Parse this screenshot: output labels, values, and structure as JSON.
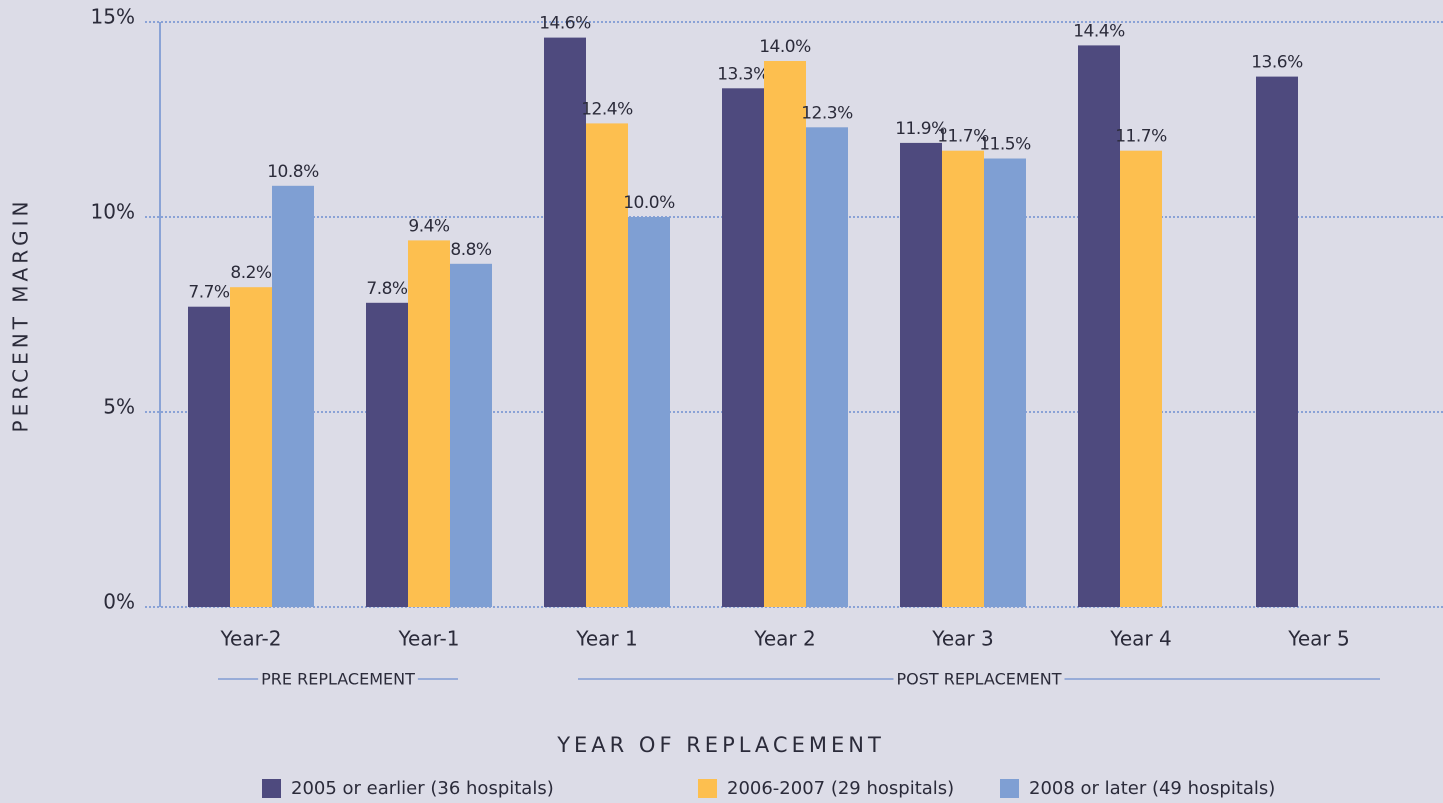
{
  "chart_data": {
    "type": "bar",
    "x_label": "YEAR OF REPLACEMENT",
    "y_label": "PERCENT MARGIN",
    "categories": [
      "Year-2",
      "Year-1",
      "Year 1",
      "Year 2",
      "Year 3",
      "Year 4",
      "Year 5"
    ],
    "series": [
      {
        "name": "2005 or earlier (36 hospitals)",
        "color": "#4e4a7e",
        "values": [
          7.7,
          7.8,
          14.6,
          13.3,
          11.9,
          14.4,
          13.6
        ],
        "value_labels": [
          "7.7%",
          "7.8%",
          "14.6%",
          "13.3%",
          "11.9%",
          "14.4%",
          "13.6%"
        ]
      },
      {
        "name": "2006-2007 (29 hospitals)",
        "color": "#fdbf4f",
        "values": [
          8.2,
          9.4,
          12.4,
          14.0,
          11.7,
          11.7,
          null
        ],
        "value_labels": [
          "8.2%",
          "9.4%",
          "12.4%",
          "14.0%",
          "11.7%",
          "11.7%",
          null
        ]
      },
      {
        "name": "2008 or later (49 hospitals)",
        "color": "#7f9fd3",
        "values": [
          10.8,
          8.8,
          10.0,
          12.3,
          11.5,
          null,
          null
        ],
        "value_labels": [
          "10.8%",
          "8.8%",
          "10.0%",
          "12.3%",
          "11.5%",
          null,
          null
        ]
      }
    ],
    "annotations": [
      "PRE REPLACEMENT",
      "POST REPLACEMENT"
    ],
    "ylim": [
      0,
      15
    ],
    "yticks": [
      {
        "value": 0,
        "label": "0%"
      },
      {
        "value": 5,
        "label": "5%"
      },
      {
        "value": 10,
        "label": "10%"
      },
      {
        "value": 15,
        "label": "15%"
      }
    ],
    "grid": true
  }
}
